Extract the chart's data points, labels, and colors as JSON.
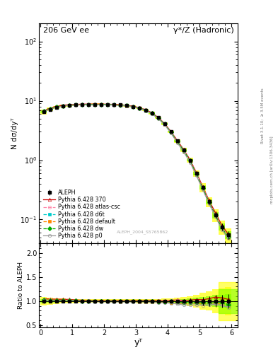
{
  "title_left": "206 GeV ee",
  "title_right": "γ*/Z (Hadronic)",
  "ylabel_main": "N dσ/dyᵀ",
  "ylabel_ratio": "Ratio to ALEPH",
  "xlabel": "yᵀ",
  "watermark": "ALEPH_2004_S5765862",
  "right_label1": "Rivet 3.1.10;  ≥ 3.5M events",
  "right_label2": "mcplots.cern.ch [arXiv:1306.3436]",
  "xT": [
    0.1,
    0.3,
    0.5,
    0.7,
    0.9,
    1.1,
    1.3,
    1.5,
    1.7,
    1.9,
    2.1,
    2.3,
    2.5,
    2.7,
    2.9,
    3.1,
    3.3,
    3.5,
    3.7,
    3.9,
    4.1,
    4.3,
    4.5,
    4.7,
    4.9,
    5.1,
    5.3,
    5.5,
    5.7,
    5.9
  ],
  "data_y": [
    6.5,
    7.2,
    7.8,
    8.1,
    8.3,
    8.5,
    8.6,
    8.65,
    8.7,
    8.7,
    8.65,
    8.6,
    8.5,
    8.3,
    8.0,
    7.6,
    7.0,
    6.2,
    5.2,
    4.1,
    3.0,
    2.1,
    1.5,
    1.0,
    0.6,
    0.35,
    0.2,
    0.12,
    0.075,
    0.055
  ],
  "data_yerr": [
    0.3,
    0.25,
    0.22,
    0.2,
    0.18,
    0.17,
    0.16,
    0.15,
    0.15,
    0.15,
    0.15,
    0.15,
    0.15,
    0.15,
    0.15,
    0.15,
    0.15,
    0.14,
    0.12,
    0.1,
    0.08,
    0.07,
    0.06,
    0.05,
    0.04,
    0.03,
    0.02,
    0.015,
    0.01,
    0.008
  ],
  "p370_y": [
    6.8,
    7.5,
    8.1,
    8.4,
    8.6,
    8.7,
    8.75,
    8.8,
    8.8,
    8.78,
    8.75,
    8.7,
    8.58,
    8.4,
    8.1,
    7.7,
    7.1,
    6.3,
    5.25,
    4.15,
    3.05,
    2.15,
    1.52,
    1.02,
    0.62,
    0.36,
    0.21,
    0.13,
    0.08,
    0.057
  ],
  "patlas_y": [
    6.7,
    7.35,
    7.95,
    8.25,
    8.48,
    8.6,
    8.67,
    8.72,
    8.73,
    8.72,
    8.68,
    8.62,
    8.5,
    8.32,
    8.02,
    7.62,
    7.02,
    6.22,
    5.18,
    4.1,
    3.02,
    2.12,
    1.5,
    1.0,
    0.6,
    0.35,
    0.2,
    0.12,
    0.075,
    0.053
  ],
  "pd6t_y": [
    6.6,
    7.25,
    7.85,
    8.15,
    8.38,
    8.5,
    8.57,
    8.62,
    8.63,
    8.62,
    8.58,
    8.52,
    8.4,
    8.22,
    7.92,
    7.52,
    6.92,
    6.12,
    5.08,
    4.0,
    2.92,
    2.02,
    1.42,
    0.95,
    0.57,
    0.33,
    0.19,
    0.115,
    0.07,
    0.05
  ],
  "pdefault_y": [
    6.6,
    7.25,
    7.85,
    8.15,
    8.38,
    8.5,
    8.57,
    8.62,
    8.63,
    8.62,
    8.58,
    8.52,
    8.4,
    8.22,
    7.92,
    7.52,
    6.92,
    6.12,
    5.08,
    4.0,
    2.92,
    2.02,
    1.42,
    0.95,
    0.57,
    0.33,
    0.19,
    0.115,
    0.07,
    0.05
  ],
  "pdw_y": [
    6.65,
    7.3,
    7.9,
    8.2,
    8.43,
    8.55,
    8.62,
    8.67,
    8.68,
    8.67,
    8.63,
    8.57,
    8.45,
    8.27,
    7.97,
    7.57,
    6.97,
    6.17,
    5.13,
    4.05,
    2.97,
    2.07,
    1.46,
    0.975,
    0.585,
    0.34,
    0.195,
    0.118,
    0.073,
    0.051
  ],
  "pp0_y": [
    6.55,
    7.2,
    7.8,
    8.1,
    8.33,
    8.45,
    8.52,
    8.57,
    8.58,
    8.57,
    8.53,
    8.47,
    8.35,
    8.17,
    7.87,
    7.47,
    6.87,
    6.07,
    5.03,
    3.95,
    2.87,
    1.97,
    1.38,
    0.92,
    0.552,
    0.32,
    0.184,
    0.112,
    0.068,
    0.048
  ],
  "ylim_main": [
    0.04,
    200
  ],
  "ylim_ratio": [
    0.45,
    2.2
  ],
  "xlim": [
    -0.05,
    6.2
  ],
  "xticks": [
    0,
    1,
    2,
    3,
    4,
    5,
    6
  ],
  "color_data": "#000000",
  "color_370": "#cc0000",
  "color_atlas": "#ff88aa",
  "color_d6t": "#00cccc",
  "color_default": "#ff8800",
  "color_dw": "#00aa00",
  "color_p0": "#999999"
}
